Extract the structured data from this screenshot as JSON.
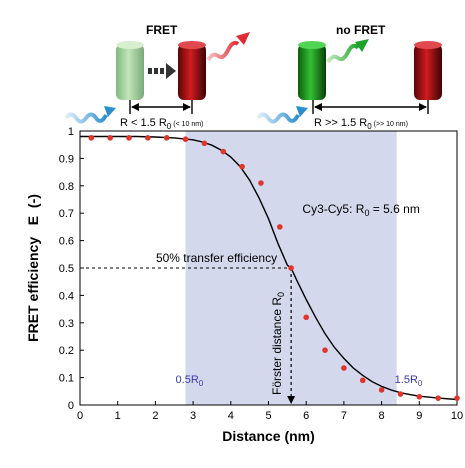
{
  "illustration": {
    "fret_label": "FRET",
    "no_fret_label": "no FRET",
    "fret_condition": {
      "main": "R < 1.5 R",
      "sub": "0",
      "small": "(< 10 nm)"
    },
    "no_fret_condition": {
      "main": "R >> 1.5 R",
      "sub": "0",
      "small": "(>> 10 nm)"
    },
    "colors": {
      "donor_faded": "#9fcf8f",
      "donor": "#1e9c1e",
      "acceptor": "#c0161a",
      "photon_in": "#3aa0d8",
      "photon_out": "#e8424a"
    }
  },
  "chart_data": {
    "type": "scatter",
    "xlabel": "Distance (nm)",
    "ylabel": "FRET efficiency   E  (-)",
    "xlim": [
      0,
      10
    ],
    "ylim": [
      0,
      1
    ],
    "xticks": [
      "0",
      "1",
      "2",
      "3",
      "4",
      "5",
      "6",
      "7",
      "8",
      "9",
      "10"
    ],
    "yticks": [
      "0",
      "0.1",
      "0.2",
      "0.3",
      "0.4",
      "0.5",
      "0.6",
      "0.7",
      "0.8",
      "0.9",
      "1"
    ],
    "grid": false,
    "R0": 5.6,
    "shaded_region": {
      "x_from": 2.8,
      "x_to": 8.4,
      "color": "#d4d8ec"
    },
    "series": [
      {
        "kind": "curve",
        "color": "#000000",
        "x": [
          0,
          0.5,
          1,
          1.5,
          2,
          2.5,
          3,
          3.25,
          3.5,
          3.75,
          4,
          4.25,
          4.5,
          4.75,
          5,
          5.25,
          5.5,
          5.6,
          5.75,
          6,
          6.25,
          6.5,
          6.75,
          7,
          7.25,
          7.5,
          7.75,
          8,
          8.25,
          8.5,
          8.75,
          9,
          9.5,
          10
        ],
        "y": [
          0.98,
          0.98,
          0.98,
          0.98,
          0.978,
          0.975,
          0.968,
          0.96,
          0.948,
          0.93,
          0.905,
          0.87,
          0.82,
          0.755,
          0.68,
          0.59,
          0.51,
          0.5,
          0.455,
          0.385,
          0.32,
          0.26,
          0.21,
          0.17,
          0.135,
          0.108,
          0.085,
          0.068,
          0.055,
          0.045,
          0.038,
          0.032,
          0.025,
          0.02
        ]
      },
      {
        "kind": "points",
        "color": "#e0352b",
        "x": [
          0.3,
          0.8,
          1.3,
          1.8,
          2.3,
          2.8,
          3.3,
          3.8,
          4.3,
          4.8,
          5.3,
          5.6,
          6.0,
          6.5,
          7.0,
          7.5,
          8.0,
          8.5,
          9.0,
          9.5,
          10.0
        ],
        "y": [
          0.975,
          0.975,
          0.975,
          0.975,
          0.975,
          0.97,
          0.955,
          0.925,
          0.87,
          0.81,
          0.65,
          0.5,
          0.32,
          0.2,
          0.135,
          0.09,
          0.055,
          0.04,
          0.03,
          0.025,
          0.025
        ]
      }
    ],
    "annotations": {
      "half_label": "50% transfer efficiency",
      "half_y": 0.5,
      "forster_label": "Förster distance R",
      "forster_sub": "0",
      "species_label": "Cy3-Cy5: R",
      "species_sub": "0",
      "species_value": " = 5.6 nm",
      "left_bound": {
        "text": "0.5R",
        "sub": "0",
        "x": 2.8
      },
      "right_bound": {
        "text": "1.5R",
        "sub": "0",
        "x": 8.4
      },
      "bound_color": "#3a3ab0"
    }
  }
}
